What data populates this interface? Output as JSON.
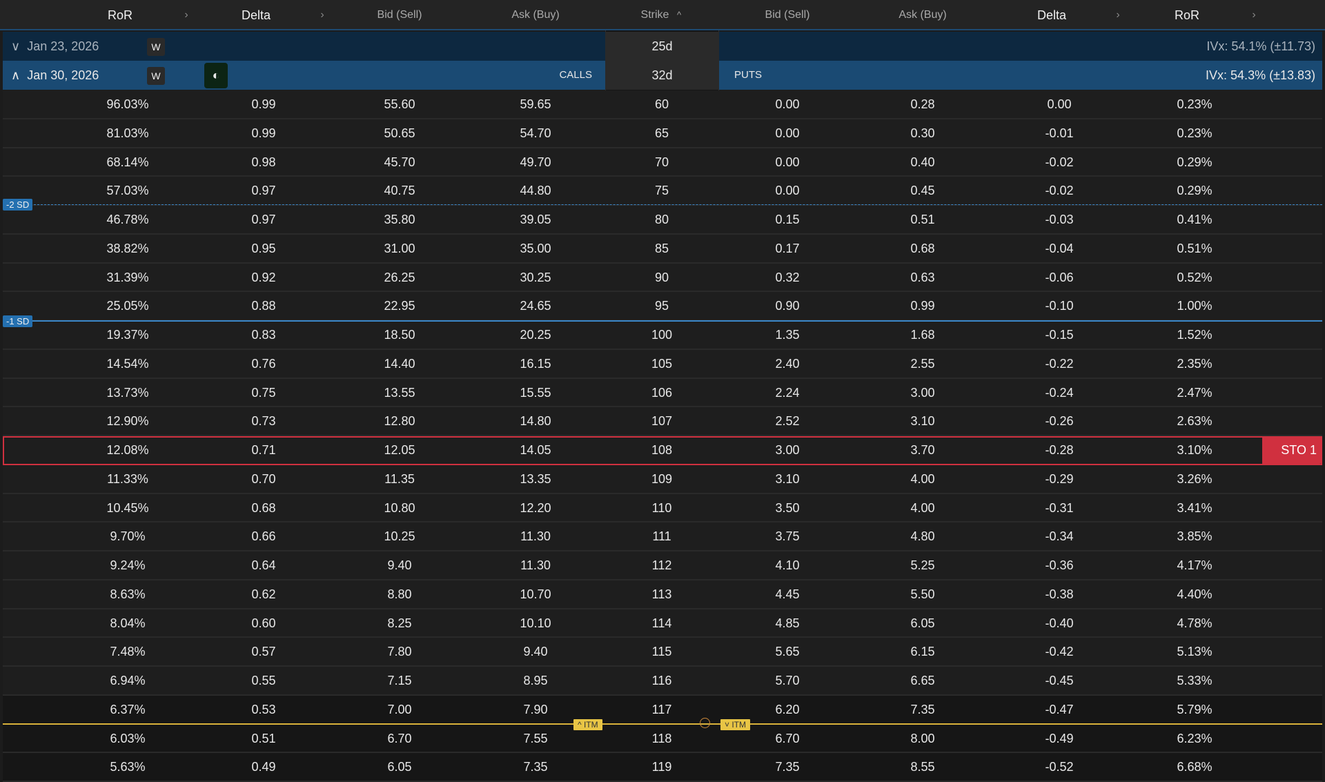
{
  "header": {
    "calls": [
      {
        "label": "RoR",
        "sortable": true
      },
      {
        "label": "Delta",
        "sortable": true
      },
      {
        "label": "Bid (Sell)"
      },
      {
        "label": "Ask (Buy)"
      }
    ],
    "strike": "Strike",
    "strike_sort": "^",
    "puts": [
      {
        "label": "Bid (Sell)"
      },
      {
        "label": "Ask (Buy)"
      },
      {
        "label": "Delta",
        "sortable": true
      },
      {
        "label": "RoR",
        "sortable": true
      }
    ],
    "chevron": "›"
  },
  "expirations": [
    {
      "date": "Jan 23, 2026",
      "toggle": "∨",
      "badge": "W",
      "dte": "25d",
      "ivx": "IVx: 54.1% (±11.73)",
      "expanded": false
    },
    {
      "date": "Jan 30, 2026",
      "toggle": "∧",
      "badge": "W",
      "dte": "32d",
      "ivx": "IVx: 54.3% (±13.83)",
      "calls_label": "CALLS",
      "puts_label": "PUTS",
      "expanded": true,
      "theme_icon": "half-moon-icon"
    }
  ],
  "rows": [
    [
      "96.03%",
      "0.99",
      "55.60",
      "59.65",
      "60",
      "0.00",
      "0.28",
      "0.00",
      "0.23%"
    ],
    [
      "81.03%",
      "0.99",
      "50.65",
      "54.70",
      "65",
      "0.00",
      "0.30",
      "-0.01",
      "0.23%"
    ],
    [
      "68.14%",
      "0.98",
      "45.70",
      "49.70",
      "70",
      "0.00",
      "0.40",
      "-0.02",
      "0.29%"
    ],
    [
      "57.03%",
      "0.97",
      "40.75",
      "44.80",
      "75",
      "0.00",
      "0.45",
      "-0.02",
      "0.29%"
    ],
    [
      "46.78%",
      "0.97",
      "35.80",
      "39.05",
      "80",
      "0.15",
      "0.51",
      "-0.03",
      "0.41%"
    ],
    [
      "38.82%",
      "0.95",
      "31.00",
      "35.00",
      "85",
      "0.17",
      "0.68",
      "-0.04",
      "0.51%"
    ],
    [
      "31.39%",
      "0.92",
      "26.25",
      "30.25",
      "90",
      "0.32",
      "0.63",
      "-0.06",
      "0.52%"
    ],
    [
      "25.05%",
      "0.88",
      "22.95",
      "24.65",
      "95",
      "0.90",
      "0.99",
      "-0.10",
      "1.00%"
    ],
    [
      "19.37%",
      "0.83",
      "18.50",
      "20.25",
      "100",
      "1.35",
      "1.68",
      "-0.15",
      "1.52%"
    ],
    [
      "14.54%",
      "0.76",
      "14.40",
      "16.15",
      "105",
      "2.40",
      "2.55",
      "-0.22",
      "2.35%"
    ],
    [
      "13.73%",
      "0.75",
      "13.55",
      "15.55",
      "106",
      "2.24",
      "3.00",
      "-0.24",
      "2.47%"
    ],
    [
      "12.90%",
      "0.73",
      "12.80",
      "14.80",
      "107",
      "2.52",
      "3.10",
      "-0.26",
      "2.63%"
    ],
    [
      "12.08%",
      "0.71",
      "12.05",
      "14.05",
      "108",
      "3.00",
      "3.70",
      "-0.28",
      "3.10%"
    ],
    [
      "11.33%",
      "0.70",
      "11.35",
      "13.35",
      "109",
      "3.10",
      "4.00",
      "-0.29",
      "3.26%"
    ],
    [
      "10.45%",
      "0.68",
      "10.80",
      "12.20",
      "110",
      "3.50",
      "4.00",
      "-0.31",
      "3.41%"
    ],
    [
      "9.70%",
      "0.66",
      "10.25",
      "11.30",
      "111",
      "3.75",
      "4.80",
      "-0.34",
      "3.85%"
    ],
    [
      "9.24%",
      "0.64",
      "9.40",
      "11.30",
      "112",
      "4.10",
      "5.25",
      "-0.36",
      "4.17%"
    ],
    [
      "8.63%",
      "0.62",
      "8.80",
      "10.70",
      "113",
      "4.45",
      "5.50",
      "-0.38",
      "4.40%"
    ],
    [
      "8.04%",
      "0.60",
      "8.25",
      "10.10",
      "114",
      "4.85",
      "6.05",
      "-0.40",
      "4.78%"
    ],
    [
      "7.48%",
      "0.57",
      "7.80",
      "9.40",
      "115",
      "5.65",
      "6.15",
      "-0.42",
      "5.13%"
    ],
    [
      "6.94%",
      "0.55",
      "7.15",
      "8.95",
      "116",
      "5.70",
      "6.65",
      "-0.45",
      "5.33%"
    ],
    [
      "6.37%",
      "0.53",
      "7.00",
      "7.90",
      "117",
      "6.20",
      "7.35",
      "-0.47",
      "5.79%"
    ],
    [
      "6.03%",
      "0.51",
      "6.70",
      "7.55",
      "118",
      "6.70",
      "8.00",
      "-0.49",
      "6.23%"
    ],
    [
      "5.63%",
      "0.49",
      "6.05",
      "7.35",
      "119",
      "7.35",
      "8.55",
      "-0.52",
      "6.68%"
    ]
  ],
  "selected_strike": "108",
  "order_badge": "STO 1",
  "sd_lines": [
    "-2 SD",
    "-1 SD"
  ],
  "itm": {
    "calls": "^ ITM",
    "puts": "˅ ITM"
  },
  "colors": {
    "accent": "#1a4a73",
    "sell": "#d0303f",
    "itm": "#e8c545",
    "sd": "#2470b0"
  }
}
